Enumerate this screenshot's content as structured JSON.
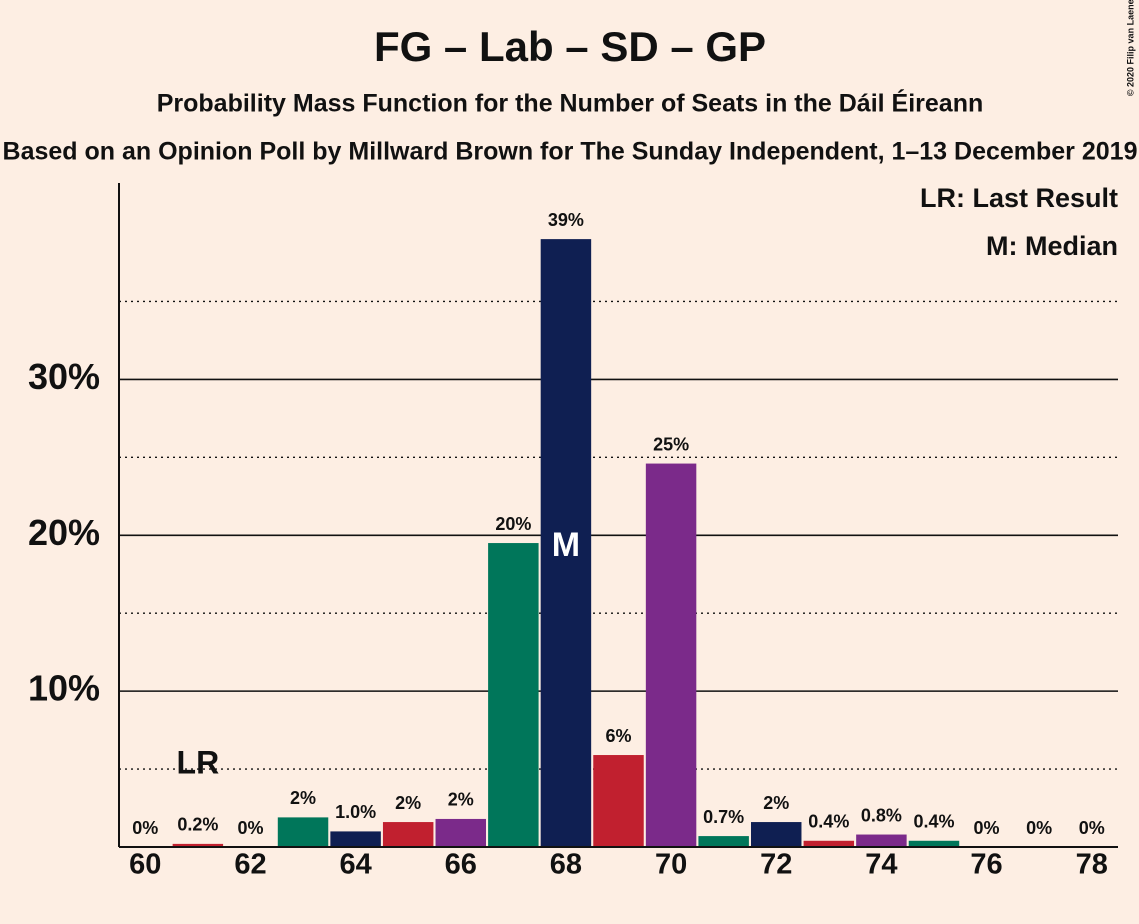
{
  "chart_data": {
    "type": "bar",
    "title": "FG – Lab – SD – GP",
    "subtitle": "Probability Mass Function for the Number of Seats in the Dáil Éireann",
    "subtitle2": "Based on an Opinion Poll by Millward Brown for The Sunday Independent, 1–13 December 2019",
    "copyright": "© 2020 Filip van Laenen",
    "legend": [
      "LR: Last Result",
      "M: Median"
    ],
    "x": [
      60,
      61,
      62,
      63,
      64,
      65,
      66,
      67,
      68,
      69,
      70,
      71,
      72,
      73,
      74,
      75,
      76,
      77,
      78
    ],
    "values": [
      0,
      0.2,
      0,
      1.9,
      1.0,
      1.6,
      1.8,
      19.5,
      39.0,
      5.9,
      24.6,
      0.7,
      1.6,
      0.4,
      0.8,
      0.4,
      0,
      0,
      0
    ],
    "value_labels": [
      "0%",
      "0.2%",
      "0%",
      "2%",
      "1.0%",
      "2%",
      "2%",
      "20%",
      "39%",
      "6%",
      "25%",
      "0.7%",
      "2%",
      "0.4%",
      "0.8%",
      "0.4%",
      "0%",
      "0%",
      "0%"
    ],
    "colors": [
      "#00765a",
      "#c1202f",
      "#7b2a8a",
      "#00765a",
      "#0f1f52",
      "#c1202f",
      "#7b2a8a",
      "#00765a",
      "#0f1f52",
      "#c1202f",
      "#7b2a8a",
      "#00765a",
      "#0f1f52",
      "#c1202f",
      "#7b2a8a",
      "#00765a",
      "#0f1f52",
      "#c1202f",
      "#7b2a8a"
    ],
    "last_result": {
      "x": 61,
      "label": "LR"
    },
    "median": {
      "x": 68,
      "label": "M"
    },
    "xlim": [
      59.5,
      78.5
    ],
    "xticks": [
      60,
      62,
      64,
      66,
      68,
      70,
      72,
      74,
      76,
      78
    ],
    "ylim": [
      0,
      42.6
    ],
    "yticks": [
      {
        "value": 10,
        "label": "10%"
      },
      {
        "value": 20,
        "label": "20%"
      },
      {
        "value": 30,
        "label": "30%"
      }
    ],
    "minor_yticks": [
      5,
      15,
      25,
      35
    ]
  }
}
